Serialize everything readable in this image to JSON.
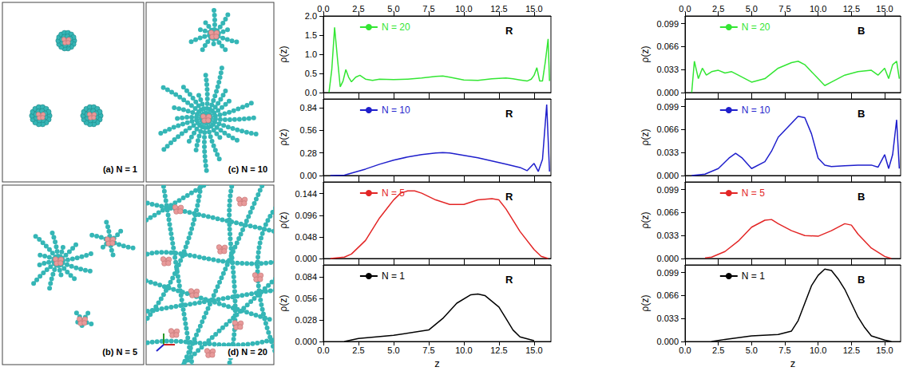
{
  "snapshots": [
    {
      "label": "(a) N = 1"
    },
    {
      "label": "(b) N = 5"
    },
    {
      "label": "(c) N = 10"
    },
    {
      "label": "(d) N = 20"
    }
  ],
  "chart_data": [
    {
      "type": "line",
      "annotation": "R",
      "ylabel": "ρ(z)",
      "grid": false,
      "x": [
        0.4,
        0.6,
        0.8,
        1.0,
        1.2,
        1.4,
        1.6,
        1.8,
        2.0,
        2.3,
        2.6,
        3.0,
        3.5,
        4,
        5,
        6,
        7,
        8,
        8.5,
        9,
        10,
        11,
        12,
        13,
        13.5,
        14,
        14.5,
        14.8,
        15.0,
        15.2,
        15.4,
        15.6,
        15.8,
        16.0,
        16.1
      ],
      "series": [
        {
          "name": "N = 20",
          "color": "#33e633",
          "values": [
            0,
            0.6,
            1.7,
            0.9,
            0.15,
            0.3,
            0.6,
            0.4,
            0.28,
            0.4,
            0.45,
            0.35,
            0.32,
            0.35,
            0.34,
            0.35,
            0.38,
            0.42,
            0.43,
            0.4,
            0.33,
            0.32,
            0.36,
            0.38,
            0.36,
            0.33,
            0.3,
            0.35,
            0.45,
            0.65,
            0.3,
            0.3,
            0.8,
            1.4,
            0.3
          ]
        }
      ],
      "xlim": [
        0,
        16.2
      ],
      "xticks": [
        {
          "value": 0,
          "label": "0.0"
        },
        2.5,
        {
          "value": 5,
          "label": "5.0"
        },
        7.5,
        {
          "value": 10,
          "label": "10.0"
        },
        12.5,
        {
          "value": 15,
          "label": "15.0"
        }
      ],
      "ylim": [
        0,
        2.0
      ],
      "yticks": [
        {
          "value": 0,
          "label": "0.0"
        },
        0.5,
        {
          "value": 1,
          "label": "1.0"
        },
        1.5,
        {
          "value": 2,
          "label": "2.0"
        }
      ]
    },
    {
      "type": "line",
      "annotation": "B",
      "ylabel": "ρ(z)",
      "grid": false,
      "x": [
        0.5,
        0.7,
        1.0,
        1.3,
        1.6,
        2.0,
        2.5,
        3.0,
        3.5,
        4,
        5,
        6,
        7,
        8,
        8.5,
        9,
        10,
        10.5,
        11,
        12,
        13,
        14,
        14.5,
        15,
        15.3,
        15.6,
        15.9,
        16.1
      ],
      "series": [
        {
          "name": "N = 20",
          "color": "#33e633",
          "values": [
            0,
            0.045,
            0.02,
            0.035,
            0.025,
            0.03,
            0.032,
            0.028,
            0.03,
            0.025,
            0.015,
            0.02,
            0.035,
            0.043,
            0.045,
            0.04,
            0.02,
            0.01,
            0.015,
            0.025,
            0.03,
            0.032,
            0.025,
            0.035,
            0.02,
            0.04,
            0.045,
            0.02
          ]
        }
      ],
      "xlim": [
        0,
        16.2
      ],
      "xticks": [
        {
          "value": 0,
          "label": "0.0"
        },
        2.5,
        {
          "value": 5,
          "label": "5.0"
        },
        7.5,
        {
          "value": 10,
          "label": "10.0"
        },
        12.5,
        {
          "value": 15,
          "label": "15.0"
        }
      ],
      "ylim": [
        0,
        0.11
      ],
      "yticks": [
        {
          "value": 0,
          "label": "0.000"
        },
        0.033,
        0.066,
        0.099
      ]
    },
    {
      "type": "line",
      "annotation": "R",
      "ylabel": "ρ(z)",
      "grid": false,
      "tick_labels": "y",
      "x": [
        0.5,
        1.5,
        2,
        3,
        4,
        5,
        6,
        7,
        8,
        8.5,
        9,
        10,
        11,
        12,
        13,
        14,
        14.5,
        15,
        15.3,
        15.6,
        15.9,
        16.1
      ],
      "series": [
        {
          "name": "N = 10",
          "color": "#1f1fcc",
          "values": [
            0,
            0.005,
            0.03,
            0.08,
            0.14,
            0.19,
            0.23,
            0.26,
            0.28,
            0.285,
            0.28,
            0.25,
            0.22,
            0.18,
            0.14,
            0.1,
            0.06,
            0.15,
            0.05,
            0.2,
            0.88,
            0.05
          ]
        }
      ],
      "xlim": [
        0,
        16.2
      ],
      "xticks": [
        {
          "value": 0,
          "label": "0.0"
        },
        2.5,
        {
          "value": 5,
          "label": "5.0"
        },
        7.5,
        {
          "value": 10,
          "label": "10.0"
        },
        12.5,
        {
          "value": 15,
          "label": "15.0"
        }
      ],
      "ylim": [
        0,
        0.95
      ],
      "yticks": [
        {
          "value": 0,
          "label": "0.00"
        },
        0.28,
        0.56,
        0.84
      ]
    },
    {
      "type": "line",
      "annotation": "B",
      "ylabel": "ρ(z)",
      "grid": false,
      "tick_labels": "y",
      "x": [
        0.5,
        1.5,
        2.5,
        3.3,
        3.8,
        4.3,
        5,
        6,
        6.5,
        7,
        7.5,
        8,
        8.5,
        9,
        9.5,
        10,
        10.5,
        11,
        12,
        13,
        14,
        14.5,
        15,
        15.3,
        15.6,
        15.9,
        16.1
      ],
      "series": [
        {
          "name": "N = 10",
          "color": "#1f1fcc",
          "values": [
            0,
            0.002,
            0.01,
            0.025,
            0.032,
            0.025,
            0.01,
            0.02,
            0.035,
            0.055,
            0.065,
            0.075,
            0.085,
            0.083,
            0.06,
            0.025,
            0.015,
            0.013,
            0.014,
            0.015,
            0.015,
            0.012,
            0.03,
            0.01,
            0.03,
            0.08,
            0.01
          ]
        }
      ],
      "xlim": [
        0,
        16.2
      ],
      "xticks": [
        {
          "value": 0,
          "label": "0.0"
        },
        2.5,
        {
          "value": 5,
          "label": "5.0"
        },
        7.5,
        {
          "value": 10,
          "label": "10.0"
        },
        12.5,
        {
          "value": 15,
          "label": "15.0"
        }
      ],
      "ylim": [
        0,
        0.11
      ],
      "yticks": [
        {
          "value": 0,
          "label": "0.000"
        },
        0.033,
        0.066,
        0.099
      ]
    },
    {
      "type": "line",
      "annotation": "R",
      "ylabel": "ρ(z)",
      "grid": false,
      "tick_labels": "y",
      "x": [
        0.5,
        1.5,
        2,
        3,
        4,
        5,
        5.5,
        6,
        6.5,
        7,
        8,
        9,
        10,
        11,
        12,
        12.5,
        13,
        14,
        15,
        15.5,
        16
      ],
      "series": [
        {
          "name": "N = 5",
          "color": "#e32626",
          "values": [
            0,
            0.003,
            0.01,
            0.04,
            0.09,
            0.13,
            0.145,
            0.15,
            0.15,
            0.145,
            0.13,
            0.12,
            0.12,
            0.13,
            0.133,
            0.13,
            0.11,
            0.06,
            0.02,
            0.005,
            0
          ]
        }
      ],
      "xlim": [
        0,
        16.2
      ],
      "xticks": [
        {
          "value": 0,
          "label": "0.0"
        },
        2.5,
        {
          "value": 5,
          "label": "5.0"
        },
        7.5,
        {
          "value": 10,
          "label": "10.0"
        },
        12.5,
        {
          "value": 15,
          "label": "15.0"
        }
      ],
      "ylim": [
        0,
        0.17
      ],
      "yticks": [
        {
          "value": 0,
          "label": "0.000"
        },
        0.048,
        0.096,
        0.144
      ]
    },
    {
      "type": "line",
      "annotation": "B",
      "ylabel": "ρ(z)",
      "grid": false,
      "tick_labels": "y",
      "x": [
        1.5,
        2,
        3,
        4,
        5,
        6,
        6.5,
        7,
        8,
        9,
        10,
        11,
        12,
        12.5,
        13,
        14,
        15,
        15.5
      ],
      "series": [
        {
          "name": "N = 5",
          "color": "#e32626",
          "values": [
            0.001,
            0.002,
            0.01,
            0.025,
            0.045,
            0.055,
            0.056,
            0.05,
            0.04,
            0.033,
            0.032,
            0.04,
            0.05,
            0.048,
            0.035,
            0.015,
            0.003,
            0
          ]
        }
      ],
      "xlim": [
        0,
        16.2
      ],
      "xticks": [
        {
          "value": 0,
          "label": "0.0"
        },
        2.5,
        {
          "value": 5,
          "label": "5.0"
        },
        7.5,
        {
          "value": 10,
          "label": "10.0"
        },
        12.5,
        {
          "value": 15,
          "label": "15.0"
        }
      ],
      "ylim": [
        0,
        0.11
      ],
      "yticks": [
        {
          "value": 0,
          "label": "0.000"
        },
        0.033,
        0.066,
        0.099
      ]
    },
    {
      "type": "line",
      "annotation": "R",
      "ylabel": "ρ(z)",
      "xlabel": "z",
      "grid": false,
      "x": [
        1.5,
        2.5,
        5,
        7.5,
        8.5,
        9.5,
        10.5,
        11,
        11.5,
        12.5,
        13,
        13.5,
        14,
        15
      ],
      "series": [
        {
          "name": "N = 1",
          "color": "#000000",
          "values": [
            0,
            0.004,
            0.008,
            0.015,
            0.03,
            0.05,
            0.061,
            0.062,
            0.06,
            0.045,
            0.03,
            0.015,
            0.006,
            0.001
          ]
        }
      ],
      "xlim": [
        0,
        16.2
      ],
      "xticks": [
        {
          "value": 0,
          "label": "0.0"
        },
        2.5,
        {
          "value": 5,
          "label": "5.0"
        },
        7.5,
        {
          "value": 10,
          "label": "10.0"
        },
        12.5,
        {
          "value": 15,
          "label": "15.0"
        }
      ],
      "ylim": [
        0,
        0.1
      ],
      "yticks": [
        {
          "value": 0,
          "label": "0.000"
        },
        0.028,
        0.056,
        0.084
      ]
    },
    {
      "type": "line",
      "annotation": "B",
      "ylabel": "ρ(z)",
      "xlabel": "z",
      "grid": false,
      "x": [
        2,
        3,
        5,
        7,
        8,
        8.5,
        9,
        9.5,
        10,
        10.5,
        11,
        11.5,
        12,
        12.5,
        13,
        13.5,
        14,
        15,
        15.5
      ],
      "series": [
        {
          "name": "N = 1",
          "color": "#000000",
          "values": [
            0,
            0.003,
            0.008,
            0.01,
            0.015,
            0.03,
            0.055,
            0.08,
            0.095,
            0.104,
            0.102,
            0.09,
            0.075,
            0.055,
            0.035,
            0.02,
            0.008,
            0.002,
            0
          ]
        }
      ],
      "xlim": [
        0,
        16.2
      ],
      "xticks": [
        {
          "value": 0,
          "label": "0.0"
        },
        2.5,
        {
          "value": 5,
          "label": "5.0"
        },
        7.5,
        {
          "value": 10,
          "label": "10.0"
        },
        12.5,
        {
          "value": 15,
          "label": "15.0"
        }
      ],
      "ylim": [
        0,
        0.11
      ],
      "yticks": [
        {
          "value": 0,
          "label": "0.000"
        },
        0.033,
        0.066,
        0.099
      ]
    }
  ]
}
